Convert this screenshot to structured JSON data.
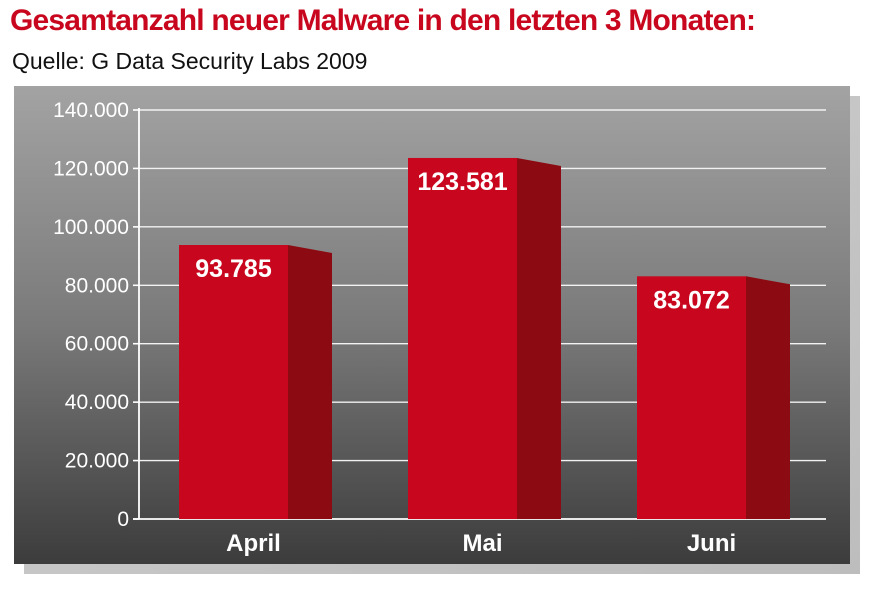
{
  "colors": {
    "title": "#c8061d",
    "bar_front": "#c8061d",
    "bar_side": "#8c0b12",
    "bar_top": "#a80a18",
    "panel_light": "#9a9a9a",
    "panel_dark": "#3f3f3f"
  },
  "chart_data": {
    "type": "bar",
    "title": "Gesamtanzahl neuer Malware in den letzten 3 Monaten:",
    "subtitle": "Quelle: G Data Security Labs 2009",
    "categories": [
      "April",
      "Mai",
      "Juni"
    ],
    "values": [
      93785,
      123581,
      83072
    ],
    "value_labels": [
      "93.785",
      "123.581",
      "83.072"
    ],
    "ylim": [
      0,
      140000
    ],
    "yticks": [
      0,
      20000,
      40000,
      60000,
      80000,
      100000,
      120000,
      140000
    ],
    "ytick_labels": [
      "0",
      "20.000",
      "40.000",
      "60.000",
      "80.000",
      "100.000",
      "120.000",
      "140.000"
    ],
    "grid": true,
    "legend": "none",
    "style": "3d"
  }
}
